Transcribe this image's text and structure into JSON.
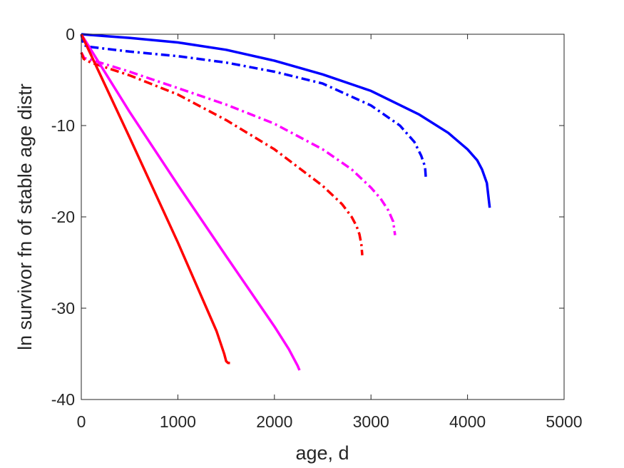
{
  "chart_data": {
    "type": "line",
    "title": "",
    "xlabel": "age, d",
    "ylabel": "ln survivor fn of stable age distr",
    "xlim": [
      0,
      5000
    ],
    "ylim": [
      -40,
      0
    ],
    "xticks": [
      0,
      1000,
      2000,
      3000,
      4000,
      5000
    ],
    "yticks": [
      0,
      -10,
      -20,
      -30,
      -40
    ],
    "xtick_labels": [
      "0",
      "1000",
      "2000",
      "3000",
      "4000",
      "5000"
    ],
    "ytick_labels": [
      "0",
      "-10",
      "-20",
      "-30",
      "-40"
    ],
    "grid": false,
    "legend": "none",
    "series": [
      {
        "color": "#0000ff",
        "style": "solid",
        "x": [
          0,
          250,
          500,
          1000,
          1500,
          2000,
          2500,
          3000,
          3500,
          3800,
          4000,
          4100,
          4150,
          4200,
          4230
        ],
        "y": [
          0,
          -0.2,
          -0.4,
          -0.9,
          -1.7,
          -2.9,
          -4.4,
          -6.2,
          -8.8,
          -10.8,
          -12.6,
          -13.8,
          -14.8,
          -16.3,
          -19
        ]
      },
      {
        "color": "#0000ff",
        "style": "dashdot",
        "x": [
          0,
          25,
          100,
          500,
          1000,
          1500,
          2000,
          2500,
          3000,
          3300,
          3450,
          3520,
          3560,
          3570
        ],
        "y": [
          0,
          -1.2,
          -1.4,
          -1.9,
          -2.4,
          -3.1,
          -4.1,
          -5.4,
          -7.8,
          -10.0,
          -11.8,
          -13.3,
          -14.5,
          -16.0
        ]
      },
      {
        "color": "#ff00ff",
        "style": "dashdot",
        "x": [
          0,
          30,
          100,
          500,
          1000,
          1500,
          2000,
          2500,
          2800,
          3000,
          3100,
          3180,
          3230,
          3250
        ],
        "y": [
          -2,
          -2.6,
          -2.8,
          -4.1,
          -5.9,
          -7.7,
          -9.8,
          -12.6,
          -14.8,
          -16.8,
          -18.0,
          -19.3,
          -20.5,
          -22.0
        ]
      },
      {
        "color": "#ff0000",
        "style": "dashdot",
        "x": [
          0,
          25,
          100,
          500,
          1000,
          1500,
          2000,
          2500,
          2700,
          2800,
          2850,
          2880,
          2900,
          2910
        ],
        "y": [
          -2,
          -2.7,
          -3.1,
          -4.5,
          -6.6,
          -9.4,
          -12.6,
          -16.6,
          -18.6,
          -20.0,
          -21.0,
          -21.9,
          -23.0,
          -24.2
        ]
      },
      {
        "color": "#ff00ff",
        "style": "solid",
        "x": [
          0,
          500,
          1000,
          1500,
          2000,
          2150,
          2200,
          2240,
          2260
        ],
        "y": [
          0,
          -8.5,
          -16.5,
          -24.3,
          -32.0,
          -34.5,
          -35.5,
          -36.3,
          -36.8
        ]
      },
      {
        "color": "#ff0000",
        "style": "solid",
        "x": [
          0,
          500,
          1000,
          1400,
          1480,
          1500,
          1520,
          1540
        ],
        "y": [
          0,
          -11.3,
          -22.8,
          -32.5,
          -35.0,
          -35.8,
          -36.0,
          -36.0
        ]
      }
    ]
  }
}
